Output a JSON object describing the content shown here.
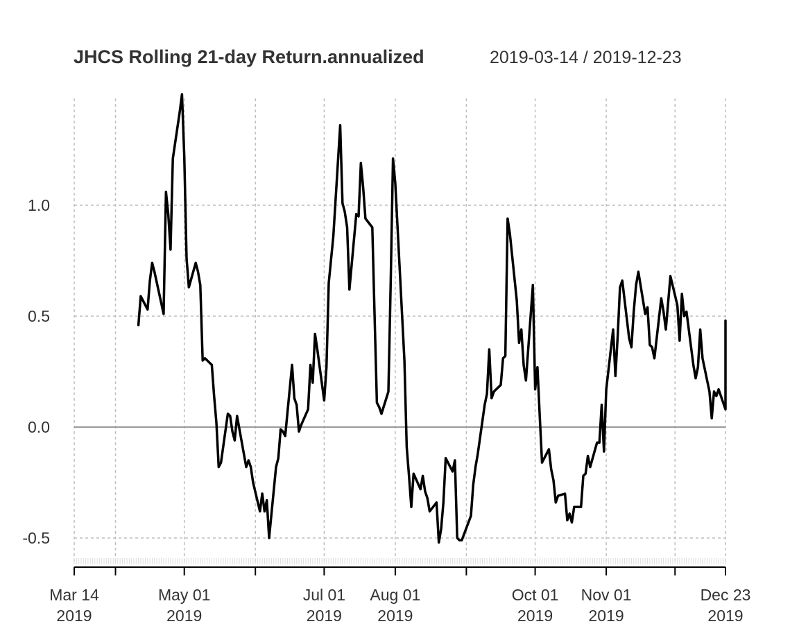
{
  "chart_data": {
    "type": "line",
    "title": "JHCS Rolling 21-day Return.annualized",
    "subtitle": "2019-03-14 / 2019-12-23",
    "xlabel": "",
    "ylabel": "",
    "xlim": [
      "2019-03-14",
      "2019-12-23"
    ],
    "ylim": [
      -0.6,
      1.5
    ],
    "grid": true,
    "y_ticks": [
      {
        "value": -0.5,
        "label": "-0.5"
      },
      {
        "value": 0.0,
        "label": "0.0"
      },
      {
        "value": 0.5,
        "label": "0.5"
      },
      {
        "value": 1.0,
        "label": "1.0"
      }
    ],
    "x_major_ticks": [
      "2019-03-14",
      "2019-04-01",
      "2019-05-01",
      "2019-06-01",
      "2019-07-01",
      "2019-08-01",
      "2019-09-01",
      "2019-10-01",
      "2019-11-01",
      "2019-12-01",
      "2019-12-23"
    ],
    "x_labels": [
      {
        "date": "2019-03-14",
        "line1": "Mar 14",
        "line2": "2019"
      },
      {
        "date": "2019-05-01",
        "line1": "May 01",
        "line2": "2019"
      },
      {
        "date": "2019-07-01",
        "line1": "Jul 01",
        "line2": "2019"
      },
      {
        "date": "2019-08-01",
        "line1": "Aug 01",
        "line2": "2019"
      },
      {
        "date": "2019-10-01",
        "line1": "Oct 01",
        "line2": "2019"
      },
      {
        "date": "2019-11-01",
        "line1": "Nov 01",
        "line2": "2019"
      },
      {
        "date": "2019-12-23",
        "line1": "Dec 23",
        "line2": "2019"
      }
    ],
    "x_grid": [
      "2019-03-14",
      "2019-04-01",
      "2019-05-01",
      "2019-06-01",
      "2019-07-01",
      "2019-08-01",
      "2019-09-01",
      "2019-10-01",
      "2019-11-01",
      "2019-12-01",
      "2019-12-23"
    ],
    "zero_line": 0.0,
    "colors": {
      "line": "#000000",
      "grid": "#bebebe",
      "zero": "#999999",
      "axis": "#000000",
      "text": "#333333"
    },
    "series": [
      {
        "points": [
          [
            "2019-04-11",
            0.46
          ],
          [
            "2019-04-12",
            0.59
          ],
          [
            "2019-04-15",
            0.53
          ],
          [
            "2019-04-16",
            0.66
          ],
          [
            "2019-04-17",
            0.74
          ],
          [
            "2019-04-18",
            0.7
          ],
          [
            "2019-04-22",
            0.51
          ],
          [
            "2019-04-23",
            1.06
          ],
          [
            "2019-04-24",
            0.96
          ],
          [
            "2019-04-25",
            0.8
          ],
          [
            "2019-04-26",
            1.21
          ],
          [
            "2019-04-29",
            1.42
          ],
          [
            "2019-04-30",
            1.5
          ],
          [
            "2019-05-01",
            1.22
          ],
          [
            "2019-05-02",
            0.76
          ],
          [
            "2019-05-03",
            0.63
          ],
          [
            "2019-05-06",
            0.74
          ],
          [
            "2019-05-07",
            0.7
          ],
          [
            "2019-05-08",
            0.64
          ],
          [
            "2019-05-09",
            0.3
          ],
          [
            "2019-05-10",
            0.31
          ],
          [
            "2019-05-13",
            0.28
          ],
          [
            "2019-05-14",
            0.14
          ],
          [
            "2019-05-15",
            0.02
          ],
          [
            "2019-05-16",
            -0.18
          ],
          [
            "2019-05-17",
            -0.16
          ],
          [
            "2019-05-20",
            0.06
          ],
          [
            "2019-05-21",
            0.05
          ],
          [
            "2019-05-22",
            -0.02
          ],
          [
            "2019-05-23",
            -0.06
          ],
          [
            "2019-05-24",
            0.05
          ],
          [
            "2019-05-28",
            -0.18
          ],
          [
            "2019-05-29",
            -0.15
          ],
          [
            "2019-05-30",
            -0.18
          ],
          [
            "2019-05-31",
            -0.25
          ],
          [
            "2019-06-03",
            -0.38
          ],
          [
            "2019-06-04",
            -0.3
          ],
          [
            "2019-06-05",
            -0.38
          ],
          [
            "2019-06-06",
            -0.33
          ],
          [
            "2019-06-07",
            -0.5
          ],
          [
            "2019-06-10",
            -0.18
          ],
          [
            "2019-06-11",
            -0.14
          ],
          [
            "2019-06-12",
            -0.01
          ],
          [
            "2019-06-13",
            -0.02
          ],
          [
            "2019-06-14",
            -0.04
          ],
          [
            "2019-06-17",
            0.28
          ],
          [
            "2019-06-18",
            0.13
          ],
          [
            "2019-06-19",
            0.1
          ],
          [
            "2019-06-20",
            -0.02
          ],
          [
            "2019-06-21",
            0.01
          ],
          [
            "2019-06-24",
            0.08
          ],
          [
            "2019-06-25",
            0.28
          ],
          [
            "2019-06-26",
            0.2
          ],
          [
            "2019-06-27",
            0.42
          ],
          [
            "2019-06-28",
            0.35
          ],
          [
            "2019-07-01",
            0.12
          ],
          [
            "2019-07-02",
            0.27
          ],
          [
            "2019-07-03",
            0.65
          ],
          [
            "2019-07-05",
            0.86
          ],
          [
            "2019-07-08",
            1.36
          ],
          [
            "2019-07-09",
            1.01
          ],
          [
            "2019-07-10",
            0.97
          ],
          [
            "2019-07-11",
            0.9
          ],
          [
            "2019-07-12",
            0.62
          ],
          [
            "2019-07-15",
            0.96
          ],
          [
            "2019-07-16",
            0.95
          ],
          [
            "2019-07-17",
            1.19
          ],
          [
            "2019-07-18",
            1.08
          ],
          [
            "2019-07-19",
            0.94
          ],
          [
            "2019-07-22",
            0.9
          ],
          [
            "2019-07-23",
            0.5
          ],
          [
            "2019-07-24",
            0.11
          ],
          [
            "2019-07-25",
            0.09
          ],
          [
            "2019-07-26",
            0.06
          ],
          [
            "2019-07-29",
            0.16
          ],
          [
            "2019-07-30",
            0.65
          ],
          [
            "2019-07-31",
            1.21
          ],
          [
            "2019-08-01",
            1.1
          ],
          [
            "2019-08-02",
            0.9
          ],
          [
            "2019-08-05",
            0.3
          ],
          [
            "2019-08-06",
            -0.09
          ],
          [
            "2019-08-07",
            -0.22
          ],
          [
            "2019-08-08",
            -0.36
          ],
          [
            "2019-08-09",
            -0.21
          ],
          [
            "2019-08-12",
            -0.28
          ],
          [
            "2019-08-13",
            -0.22
          ],
          [
            "2019-08-14",
            -0.29
          ],
          [
            "2019-08-15",
            -0.32
          ],
          [
            "2019-08-16",
            -0.38
          ],
          [
            "2019-08-19",
            -0.34
          ],
          [
            "2019-08-20",
            -0.52
          ],
          [
            "2019-08-21",
            -0.46
          ],
          [
            "2019-08-22",
            -0.34
          ],
          [
            "2019-08-23",
            -0.14
          ],
          [
            "2019-08-26",
            -0.2
          ],
          [
            "2019-08-27",
            -0.15
          ],
          [
            "2019-08-28",
            -0.5
          ],
          [
            "2019-08-29",
            -0.51
          ],
          [
            "2019-08-30",
            -0.51
          ],
          [
            "2019-09-03",
            -0.4
          ],
          [
            "2019-09-04",
            -0.26
          ],
          [
            "2019-09-05",
            -0.18
          ],
          [
            "2019-09-06",
            -0.12
          ],
          [
            "2019-09-09",
            0.1
          ],
          [
            "2019-09-10",
            0.15
          ],
          [
            "2019-09-11",
            0.35
          ],
          [
            "2019-09-12",
            0.13
          ],
          [
            "2019-09-13",
            0.16
          ],
          [
            "2019-09-16",
            0.19
          ],
          [
            "2019-09-17",
            0.31
          ],
          [
            "2019-09-18",
            0.32
          ],
          [
            "2019-09-19",
            0.94
          ],
          [
            "2019-09-20",
            0.87
          ],
          [
            "2019-09-23",
            0.57
          ],
          [
            "2019-09-24",
            0.38
          ],
          [
            "2019-09-25",
            0.44
          ],
          [
            "2019-09-26",
            0.28
          ],
          [
            "2019-09-27",
            0.21
          ],
          [
            "2019-09-30",
            0.64
          ],
          [
            "2019-10-01",
            0.17
          ],
          [
            "2019-10-02",
            0.27
          ],
          [
            "2019-10-03",
            0.05
          ],
          [
            "2019-10-04",
            -0.16
          ],
          [
            "2019-10-07",
            -0.1
          ],
          [
            "2019-10-08",
            -0.19
          ],
          [
            "2019-10-09",
            -0.24
          ],
          [
            "2019-10-10",
            -0.34
          ],
          [
            "2019-10-11",
            -0.31
          ],
          [
            "2019-10-14",
            -0.3
          ],
          [
            "2019-10-15",
            -0.42
          ],
          [
            "2019-10-16",
            -0.39
          ],
          [
            "2019-10-17",
            -0.43
          ],
          [
            "2019-10-18",
            -0.36
          ],
          [
            "2019-10-21",
            -0.36
          ],
          [
            "2019-10-22",
            -0.22
          ],
          [
            "2019-10-23",
            -0.21
          ],
          [
            "2019-10-24",
            -0.13
          ],
          [
            "2019-10-25",
            -0.18
          ],
          [
            "2019-10-28",
            -0.07
          ],
          [
            "2019-10-29",
            -0.07
          ],
          [
            "2019-10-30",
            0.1
          ],
          [
            "2019-10-31",
            -0.11
          ],
          [
            "2019-11-01",
            0.17
          ],
          [
            "2019-11-04",
            0.44
          ],
          [
            "2019-11-05",
            0.23
          ],
          [
            "2019-11-06",
            0.41
          ],
          [
            "2019-11-07",
            0.63
          ],
          [
            "2019-11-08",
            0.66
          ],
          [
            "2019-11-11",
            0.4
          ],
          [
            "2019-11-12",
            0.36
          ],
          [
            "2019-11-13",
            0.52
          ],
          [
            "2019-11-14",
            0.64
          ],
          [
            "2019-11-15",
            0.7
          ],
          [
            "2019-11-18",
            0.51
          ],
          [
            "2019-11-19",
            0.54
          ],
          [
            "2019-11-20",
            0.37
          ],
          [
            "2019-11-21",
            0.36
          ],
          [
            "2019-11-22",
            0.31
          ],
          [
            "2019-11-25",
            0.58
          ],
          [
            "2019-11-26",
            0.52
          ],
          [
            "2019-11-27",
            0.44
          ],
          [
            "2019-11-29",
            0.68
          ],
          [
            "2019-12-02",
            0.55
          ],
          [
            "2019-12-03",
            0.39
          ],
          [
            "2019-12-04",
            0.6
          ],
          [
            "2019-12-05",
            0.5
          ],
          [
            "2019-12-06",
            0.52
          ],
          [
            "2019-12-09",
            0.28
          ],
          [
            "2019-12-10",
            0.22
          ],
          [
            "2019-12-11",
            0.27
          ],
          [
            "2019-12-12",
            0.44
          ],
          [
            "2019-12-13",
            0.31
          ],
          [
            "2019-12-16",
            0.16
          ],
          [
            "2019-12-17",
            0.04
          ],
          [
            "2019-12-18",
            0.16
          ],
          [
            "2019-12-19",
            0.14
          ],
          [
            "2019-12-20",
            0.17
          ],
          [
            "2019-12-23",
            0.08
          ],
          [
            "2019-12-24",
            0.1
          ],
          [
            "2019-12-26",
            0.36
          ],
          [
            "2019-12-27",
            0.48
          ],
          [
            "2019-12-30",
            0.4
          ]
        ]
      }
    ]
  }
}
